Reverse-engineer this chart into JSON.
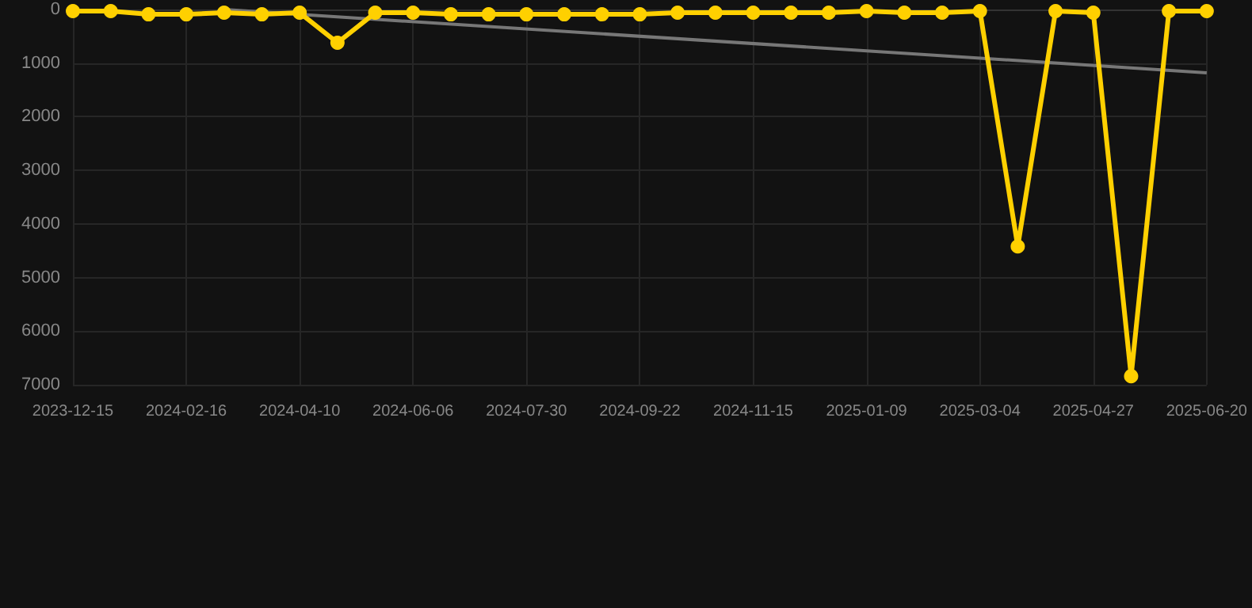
{
  "chart_data": {
    "type": "line",
    "categories": [
      "2023-12-15",
      null,
      null,
      "2024-02-16",
      null,
      null,
      "2024-04-10",
      null,
      null,
      "2024-06-06",
      null,
      null,
      "2024-07-30",
      null,
      null,
      "2024-09-22",
      null,
      null,
      "2024-11-15",
      null,
      null,
      "2025-01-09",
      null,
      null,
      "2025-03-04",
      null,
      null,
      "2025-04-27",
      null,
      null,
      "2025-06-20"
    ],
    "series": [
      {
        "color": "#ffd000",
        "values": [
          30,
          30,
          90,
          90,
          60,
          90,
          60,
          620,
          60,
          60,
          90,
          90,
          90,
          90,
          90,
          90,
          60,
          60,
          60,
          60,
          60,
          30,
          60,
          60,
          30,
          4420,
          30,
          60,
          6840,
          30,
          30
        ]
      },
      {
        "type": "line",
        "marker": "none",
        "color": "#777777",
        "values": [
          null,
          null,
          null,
          null,
          0,
          null,
          null,
          null,
          null,
          null,
          null,
          null,
          null,
          null,
          null,
          null,
          null,
          null,
          null,
          null,
          null,
          null,
          null,
          null,
          null,
          null,
          null,
          null,
          null,
          null,
          1180
        ]
      }
    ],
    "ylim": [
      7000,
      0
    ],
    "yticks": [
      0,
      1000,
      2000,
      3000,
      4000,
      5000,
      6000,
      7000
    ],
    "grid": true,
    "marker": "circle",
    "line_style": "solid"
  }
}
